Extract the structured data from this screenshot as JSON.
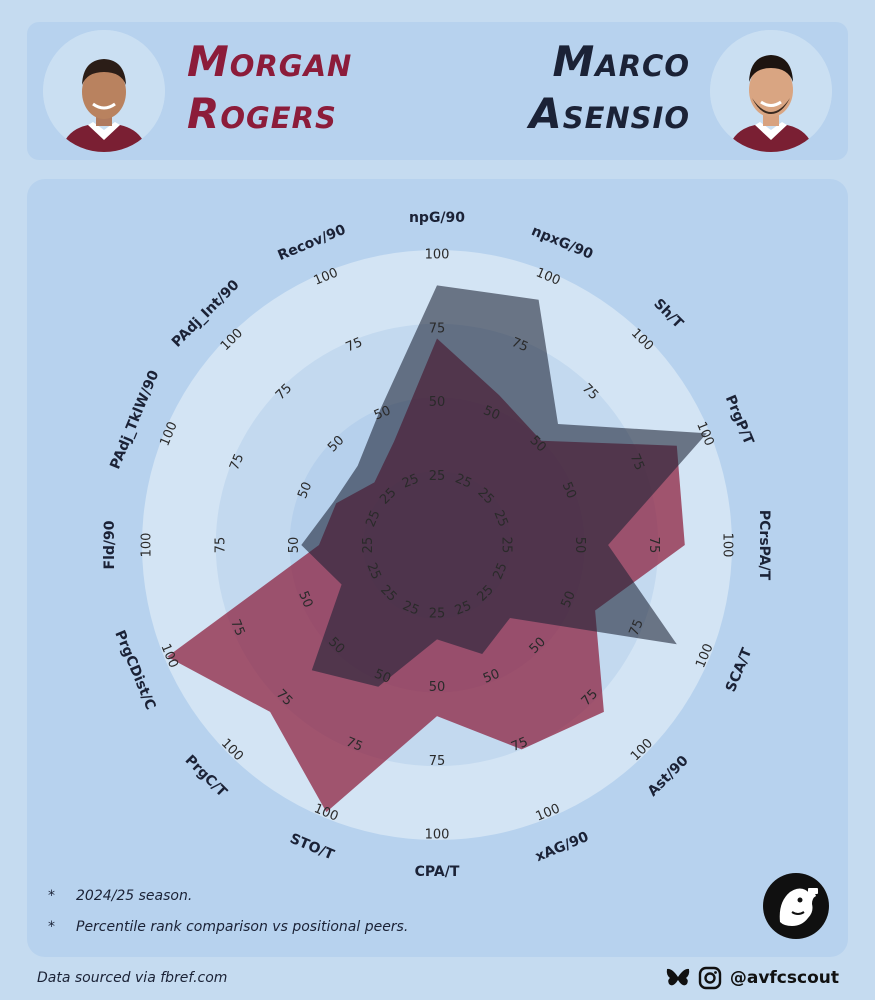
{
  "players": {
    "left": {
      "first": "Morgan",
      "last": "Rogers",
      "color": "#8c1c3a"
    },
    "right": {
      "first": "Marco",
      "last": "Asensio",
      "color": "#1b2236"
    }
  },
  "notes": [
    {
      "bullet": "*",
      "text": "2024/25 season."
    },
    {
      "bullet": "*",
      "text": "Percentile rank comparison vs positional peers."
    }
  ],
  "footer": {
    "source": "Data sourced via fbref.com",
    "handle": "@avfcscout",
    "icons": [
      "bluesky-icon",
      "instagram-icon"
    ]
  },
  "chart_data": {
    "type": "radar",
    "metrics": [
      "npG/90",
      "npxG/90",
      "Sh/T",
      "PrgP/T",
      "PCrsPA/T",
      "SCA/T",
      "Ast/90",
      "xAG/90",
      "CPA/T",
      "STO/T",
      "PrgC/T",
      "PrgCDist/C",
      "Fld/90",
      "PAdj_TklW/90",
      "PAdj_Int/90",
      "Recov/90"
    ],
    "rings": [
      25,
      50,
      75,
      100
    ],
    "range": [
      0,
      100
    ],
    "series": [
      {
        "name": "Morgan Rogers",
        "color": "#8c1c3a",
        "values": [
          70,
          55,
          50,
          88,
          84,
          58,
          80,
          75,
          58,
          98,
          80,
          99,
          40,
          37,
          30,
          38
        ]
      },
      {
        "name": "Marco Asensio",
        "color": "#1b2236",
        "values": [
          88,
          90,
          58,
          99,
          58,
          88,
          35,
          40,
          32,
          52,
          60,
          35,
          46,
          38,
          38,
          50
        ]
      }
    ]
  }
}
